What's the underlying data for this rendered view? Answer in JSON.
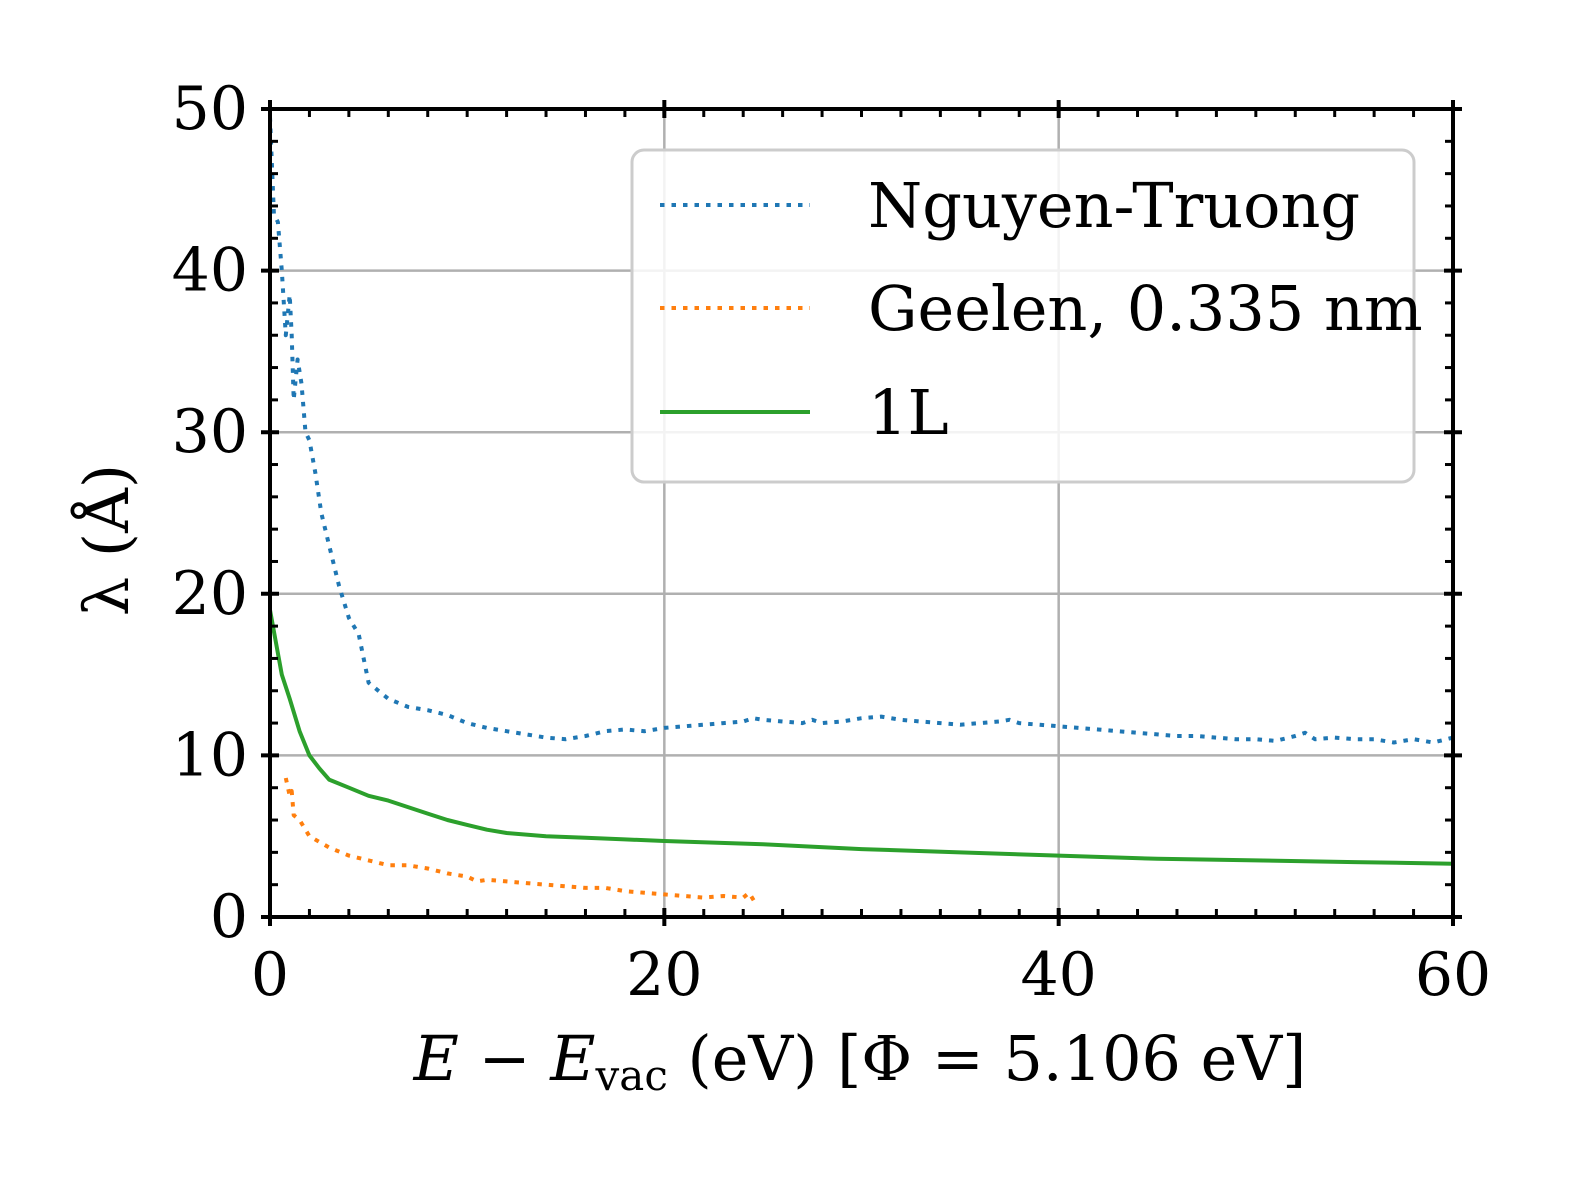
{
  "chart_data": {
    "type": "line",
    "xlabel": "E − E_vac (eV) [Φ = 5.106 eV]",
    "xlabel_parts": {
      "e": "E",
      "minus": " − ",
      "evac": "E",
      "vac_sub": "vac",
      "rest": " (eV) [Φ = 5.106 eV]"
    },
    "ylabel": "λ (Å)",
    "xlim": [
      0,
      60
    ],
    "ylim": [
      0,
      50
    ],
    "xticks": [
      0,
      20,
      40,
      60
    ],
    "yticks": [
      0,
      10,
      20,
      30,
      40,
      50
    ],
    "xtick_labels": [
      "0",
      "20",
      "40",
      "60"
    ],
    "ytick_labels": [
      "0",
      "10",
      "20",
      "30",
      "40",
      "50"
    ],
    "grid": true,
    "legend_position": "top-right",
    "colors": {
      "Nguyen-Truong": "#1f77b4",
      "Geelen, 0.335 nm": "#ff7f0e",
      "1L": "#2ca02c"
    },
    "series": [
      {
        "name": "Nguyen-Truong",
        "style": "dotted",
        "x": [
          0.0,
          0.2,
          0.4,
          0.6,
          0.8,
          1.0,
          1.1,
          1.2,
          1.4,
          1.6,
          1.8,
          2.0,
          2.3,
          2.6,
          3.0,
          3.5,
          4.0,
          4.5,
          5.0,
          5.5,
          6.0,
          7.0,
          8.0,
          9.0,
          10.0,
          11.0,
          12.0,
          13.0,
          14.0,
          15.0,
          16.0,
          17.0,
          18.0,
          19.0,
          20.0,
          21.0,
          22.0,
          23.0,
          24.0,
          24.5,
          25.0,
          26.0,
          27.0,
          27.5,
          28.0,
          29.0,
          30.0,
          31.0,
          32.0,
          33.0,
          34.0,
          35.0,
          36.0,
          37.0,
          37.5,
          38.0,
          39.0,
          40.0,
          41.0,
          42.0,
          43.0,
          44.0,
          45.0,
          46.0,
          47.0,
          48.0,
          49.0,
          50.0,
          51.0,
          52.0,
          52.5,
          53.0,
          54.0,
          55.0,
          56.0,
          57.0,
          58.0,
          59.0,
          60.0
        ],
        "y": [
          49.5,
          43.5,
          43.0,
          40.0,
          36.0,
          38.5,
          36.0,
          32.0,
          34.5,
          33.0,
          30.0,
          29.5,
          27.5,
          25.0,
          23.0,
          20.5,
          18.5,
          17.5,
          14.5,
          14.0,
          13.5,
          13.0,
          12.8,
          12.5,
          12.0,
          11.7,
          11.5,
          11.3,
          11.1,
          11.0,
          11.2,
          11.5,
          11.6,
          11.5,
          11.7,
          11.8,
          11.9,
          12.0,
          12.1,
          12.3,
          12.2,
          12.1,
          12.0,
          12.2,
          12.0,
          12.1,
          12.3,
          12.4,
          12.2,
          12.1,
          12.0,
          11.9,
          12.0,
          12.1,
          12.2,
          12.0,
          11.9,
          11.8,
          11.7,
          11.6,
          11.5,
          11.4,
          11.3,
          11.2,
          11.2,
          11.1,
          11.0,
          11.0,
          10.9,
          11.2,
          11.4,
          11.0,
          11.1,
          11.0,
          11.0,
          10.8,
          11.0,
          10.8,
          11.1
        ]
      },
      {
        "name": "Geelen, 0.335 nm",
        "style": "dotted",
        "x": [
          0.8,
          1.0,
          1.1,
          1.2,
          1.5,
          2.0,
          3.0,
          4.0,
          5.0,
          6.0,
          7.0,
          8.0,
          9.0,
          10.0,
          10.5,
          11.0,
          12.0,
          13.0,
          14.0,
          15.0,
          16.0,
          17.0,
          18.0,
          19.0,
          20.0,
          21.0,
          22.0,
          23.0,
          24.0,
          24.3,
          24.6
        ],
        "y": [
          8.6,
          7.5,
          7.8,
          6.3,
          6.0,
          5.0,
          4.3,
          3.8,
          3.5,
          3.2,
          3.2,
          3.0,
          2.7,
          2.5,
          2.2,
          2.3,
          2.2,
          2.1,
          2.0,
          1.9,
          1.8,
          1.8,
          1.6,
          1.5,
          1.4,
          1.3,
          1.2,
          1.3,
          1.2,
          1.5,
          0.9
        ]
      },
      {
        "name": "1L",
        "style": "solid",
        "x": [
          0.0,
          0.3,
          0.6,
          1.0,
          1.5,
          2.0,
          2.5,
          3.0,
          4.0,
          5.0,
          6.0,
          7.0,
          8.0,
          9.0,
          10.0,
          11.0,
          12.0,
          14.0,
          16.0,
          18.0,
          20.0,
          25.0,
          30.0,
          35.0,
          40.0,
          45.0,
          50.0,
          55.0,
          60.0
        ],
        "y": [
          19.0,
          17.0,
          15.0,
          13.5,
          11.5,
          10.0,
          9.2,
          8.5,
          8.0,
          7.5,
          7.2,
          6.8,
          6.4,
          6.0,
          5.7,
          5.4,
          5.2,
          5.0,
          4.9,
          4.8,
          4.7,
          4.5,
          4.2,
          4.0,
          3.8,
          3.6,
          3.5,
          3.4,
          3.3
        ]
      }
    ]
  }
}
